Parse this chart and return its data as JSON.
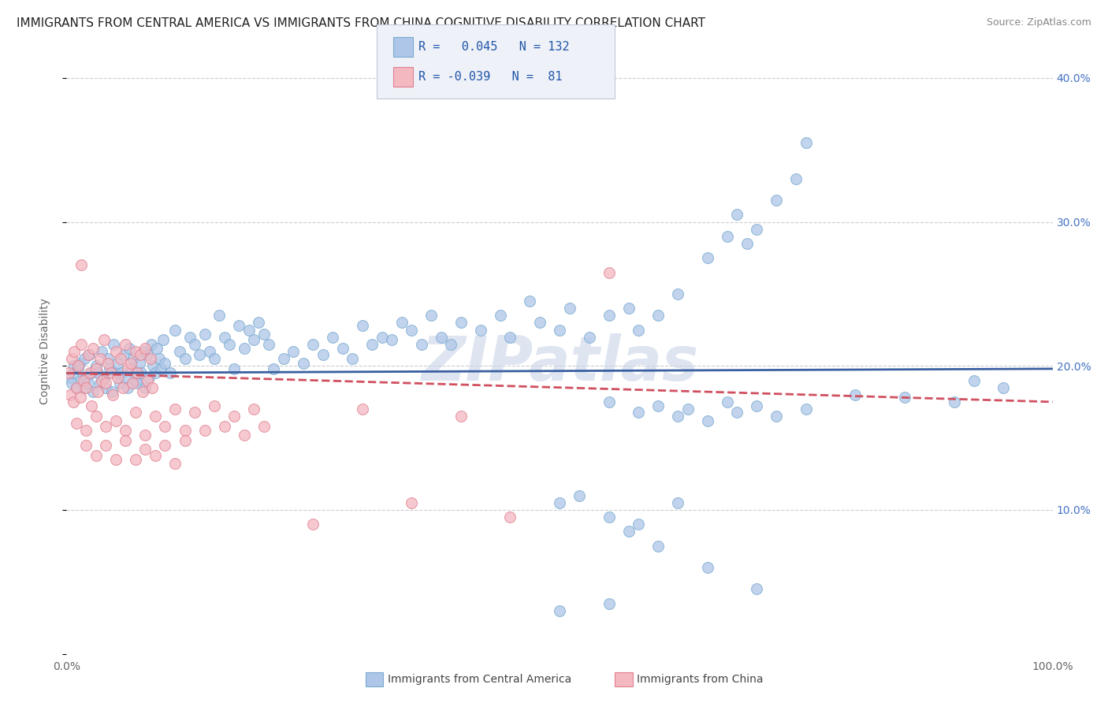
{
  "title": "IMMIGRANTS FROM CENTRAL AMERICA VS IMMIGRANTS FROM CHINA COGNITIVE DISABILITY CORRELATION CHART",
  "source": "Source: ZipAtlas.com",
  "ylabel": "Cognitive Disability",
  "series": [
    {
      "name": "Immigrants from Central America",
      "color": "#aec6e8",
      "edge_color": "#7aaad0",
      "line_color": "#3a5fa0",
      "line_style": "-",
      "R": 0.045,
      "N": 132,
      "trend_x0": 19.5,
      "trend_x1": 19.8,
      "points": [
        [
          0.3,
          19.2
        ],
        [
          0.5,
          18.8
        ],
        [
          0.7,
          19.5
        ],
        [
          0.8,
          20.0
        ],
        [
          1.0,
          18.5
        ],
        [
          1.2,
          19.8
        ],
        [
          1.3,
          20.2
        ],
        [
          1.5,
          19.0
        ],
        [
          1.7,
          18.5
        ],
        [
          1.8,
          20.5
        ],
        [
          2.0,
          19.2
        ],
        [
          2.2,
          18.8
        ],
        [
          2.3,
          20.8
        ],
        [
          2.5,
          19.5
        ],
        [
          2.7,
          18.2
        ],
        [
          3.0,
          20.0
        ],
        [
          3.2,
          19.5
        ],
        [
          3.4,
          18.8
        ],
        [
          3.6,
          21.0
        ],
        [
          3.8,
          19.2
        ],
        [
          4.0,
          18.5
        ],
        [
          4.2,
          20.5
        ],
        [
          4.4,
          19.8
        ],
        [
          4.6,
          18.2
        ],
        [
          4.8,
          21.5
        ],
        [
          5.0,
          19.5
        ],
        [
          5.2,
          20.2
        ],
        [
          5.4,
          18.8
        ],
        [
          5.6,
          19.5
        ],
        [
          5.8,
          20.8
        ],
        [
          6.0,
          19.2
        ],
        [
          6.2,
          18.5
        ],
        [
          6.4,
          21.2
        ],
        [
          6.6,
          19.8
        ],
        [
          6.8,
          20.5
        ],
        [
          7.0,
          19.0
        ],
        [
          7.2,
          18.8
        ],
        [
          7.4,
          20.2
        ],
        [
          7.6,
          19.5
        ],
        [
          7.8,
          21.0
        ],
        [
          8.0,
          18.5
        ],
        [
          8.2,
          20.8
        ],
        [
          8.4,
          19.2
        ],
        [
          8.6,
          21.5
        ],
        [
          8.8,
          20.0
        ],
        [
          9.0,
          19.5
        ],
        [
          9.2,
          21.2
        ],
        [
          9.4,
          20.5
        ],
        [
          9.6,
          19.8
        ],
        [
          9.8,
          21.8
        ],
        [
          10.0,
          20.2
        ],
        [
          10.5,
          19.5
        ],
        [
          11.0,
          22.5
        ],
        [
          11.5,
          21.0
        ],
        [
          12.0,
          20.5
        ],
        [
          12.5,
          22.0
        ],
        [
          13.0,
          21.5
        ],
        [
          13.5,
          20.8
        ],
        [
          14.0,
          22.2
        ],
        [
          14.5,
          21.0
        ],
        [
          15.0,
          20.5
        ],
        [
          15.5,
          23.5
        ],
        [
          16.0,
          22.0
        ],
        [
          16.5,
          21.5
        ],
        [
          17.0,
          19.8
        ],
        [
          17.5,
          22.8
        ],
        [
          18.0,
          21.2
        ],
        [
          18.5,
          22.5
        ],
        [
          19.0,
          21.8
        ],
        [
          19.5,
          23.0
        ],
        [
          20.0,
          22.2
        ],
        [
          20.5,
          21.5
        ],
        [
          21.0,
          19.8
        ],
        [
          22.0,
          20.5
        ],
        [
          23.0,
          21.0
        ],
        [
          24.0,
          20.2
        ],
        [
          25.0,
          21.5
        ],
        [
          26.0,
          20.8
        ],
        [
          27.0,
          22.0
        ],
        [
          28.0,
          21.2
        ],
        [
          29.0,
          20.5
        ],
        [
          30.0,
          22.8
        ],
        [
          31.0,
          21.5
        ],
        [
          32.0,
          22.0
        ],
        [
          33.0,
          21.8
        ],
        [
          34.0,
          23.0
        ],
        [
          35.0,
          22.5
        ],
        [
          36.0,
          21.5
        ],
        [
          37.0,
          23.5
        ],
        [
          38.0,
          22.0
        ],
        [
          39.0,
          21.5
        ],
        [
          40.0,
          23.0
        ],
        [
          42.0,
          22.5
        ],
        [
          44.0,
          23.5
        ],
        [
          45.0,
          22.0
        ],
        [
          47.0,
          24.5
        ],
        [
          48.0,
          23.0
        ],
        [
          50.0,
          22.5
        ],
        [
          51.0,
          24.0
        ],
        [
          53.0,
          22.0
        ],
        [
          55.0,
          23.5
        ],
        [
          57.0,
          24.0
        ],
        [
          58.0,
          22.5
        ],
        [
          60.0,
          23.5
        ],
        [
          62.0,
          25.0
        ],
        [
          65.0,
          27.5
        ],
        [
          67.0,
          29.0
        ],
        [
          68.0,
          30.5
        ],
        [
          69.0,
          28.5
        ],
        [
          70.0,
          29.5
        ],
        [
          72.0,
          31.5
        ],
        [
          74.0,
          33.0
        ],
        [
          75.0,
          35.5
        ],
        [
          55.0,
          17.5
        ],
        [
          58.0,
          16.8
        ],
        [
          60.0,
          17.2
        ],
        [
          62.0,
          16.5
        ],
        [
          63.0,
          17.0
        ],
        [
          65.0,
          16.2
        ],
        [
          67.0,
          17.5
        ],
        [
          68.0,
          16.8
        ],
        [
          70.0,
          17.2
        ],
        [
          72.0,
          16.5
        ],
        [
          75.0,
          17.0
        ],
        [
          50.0,
          10.5
        ],
        [
          52.0,
          11.0
        ],
        [
          55.0,
          9.5
        ],
        [
          57.0,
          8.5
        ],
        [
          60.0,
          7.5
        ],
        [
          65.0,
          6.0
        ],
        [
          70.0,
          4.5
        ],
        [
          58.0,
          9.0
        ],
        [
          62.0,
          10.5
        ],
        [
          80.0,
          18.0
        ],
        [
          90.0,
          17.5
        ],
        [
          85.0,
          17.8
        ],
        [
          92.0,
          19.0
        ],
        [
          95.0,
          18.5
        ],
        [
          50.0,
          3.0
        ],
        [
          55.0,
          3.5
        ]
      ]
    },
    {
      "name": "Immigrants from China",
      "color": "#f4b8c1",
      "edge_color": "#e08090",
      "line_color": "#d05060",
      "line_style": "--",
      "R": -0.039,
      "N": 81,
      "trend_x0": 19.5,
      "trend_x1": 17.5,
      "points": [
        [
          0.2,
          19.5
        ],
        [
          0.4,
          18.0
        ],
        [
          0.5,
          20.5
        ],
        [
          0.7,
          17.5
        ],
        [
          0.8,
          21.0
        ],
        [
          1.0,
          18.5
        ],
        [
          1.2,
          20.0
        ],
        [
          1.4,
          17.8
        ],
        [
          1.5,
          21.5
        ],
        [
          1.7,
          19.0
        ],
        [
          2.0,
          18.5
        ],
        [
          2.2,
          20.8
        ],
        [
          2.4,
          19.5
        ],
        [
          2.5,
          17.2
        ],
        [
          2.7,
          21.2
        ],
        [
          3.0,
          19.8
        ],
        [
          3.2,
          18.2
        ],
        [
          3.4,
          20.5
        ],
        [
          3.6,
          19.0
        ],
        [
          3.8,
          21.8
        ],
        [
          4.0,
          18.8
        ],
        [
          4.2,
          20.2
        ],
        [
          4.5,
          19.5
        ],
        [
          4.7,
          18.0
        ],
        [
          5.0,
          21.0
        ],
        [
          5.2,
          19.2
        ],
        [
          5.5,
          20.5
        ],
        [
          5.7,
          18.5
        ],
        [
          6.0,
          21.5
        ],
        [
          6.2,
          19.8
        ],
        [
          6.5,
          20.2
        ],
        [
          6.7,
          18.8
        ],
        [
          7.0,
          21.0
        ],
        [
          7.2,
          19.5
        ],
        [
          7.5,
          20.8
        ],
        [
          7.7,
          18.2
        ],
        [
          8.0,
          21.2
        ],
        [
          8.2,
          19.0
        ],
        [
          8.5,
          20.5
        ],
        [
          8.7,
          18.5
        ],
        [
          1.0,
          16.0
        ],
        [
          2.0,
          15.5
        ],
        [
          3.0,
          16.5
        ],
        [
          4.0,
          15.8
        ],
        [
          5.0,
          16.2
        ],
        [
          6.0,
          15.5
        ],
        [
          7.0,
          16.8
        ],
        [
          8.0,
          15.2
        ],
        [
          9.0,
          16.5
        ],
        [
          10.0,
          15.8
        ],
        [
          11.0,
          17.0
        ],
        [
          12.0,
          15.5
        ],
        [
          13.0,
          16.8
        ],
        [
          14.0,
          15.5
        ],
        [
          15.0,
          17.2
        ],
        [
          16.0,
          15.8
        ],
        [
          17.0,
          16.5
        ],
        [
          18.0,
          15.2
        ],
        [
          19.0,
          17.0
        ],
        [
          20.0,
          15.8
        ],
        [
          2.0,
          14.5
        ],
        [
          3.0,
          13.8
        ],
        [
          4.0,
          14.5
        ],
        [
          5.0,
          13.5
        ],
        [
          6.0,
          14.8
        ],
        [
          7.0,
          13.5
        ],
        [
          8.0,
          14.2
        ],
        [
          9.0,
          13.8
        ],
        [
          10.0,
          14.5
        ],
        [
          11.0,
          13.2
        ],
        [
          12.0,
          14.8
        ],
        [
          1.5,
          27.0
        ],
        [
          30.0,
          17.0
        ],
        [
          40.0,
          16.5
        ],
        [
          55.0,
          26.5
        ],
        [
          25.0,
          9.0
        ],
        [
          35.0,
          10.5
        ],
        [
          45.0,
          9.5
        ]
      ]
    }
  ],
  "xlim": [
    0,
    100
  ],
  "ylim": [
    0,
    42
  ],
  "yticks": [
    0,
    10,
    20,
    30,
    40
  ],
  "ytick_labels": [
    "",
    "10.0%",
    "20.0%",
    "30.0%",
    "40.0%"
  ],
  "xtick_labels": [
    "0.0%",
    "100.0%"
  ],
  "grid_color": "#cccccc",
  "background_color": "#ffffff",
  "title_fontsize": 11,
  "watermark": "ZIPatlas",
  "watermark_color": "#c8d4e8",
  "legend_box_color": "#eef2f8",
  "legend_border_color": "#c0c8d8"
}
